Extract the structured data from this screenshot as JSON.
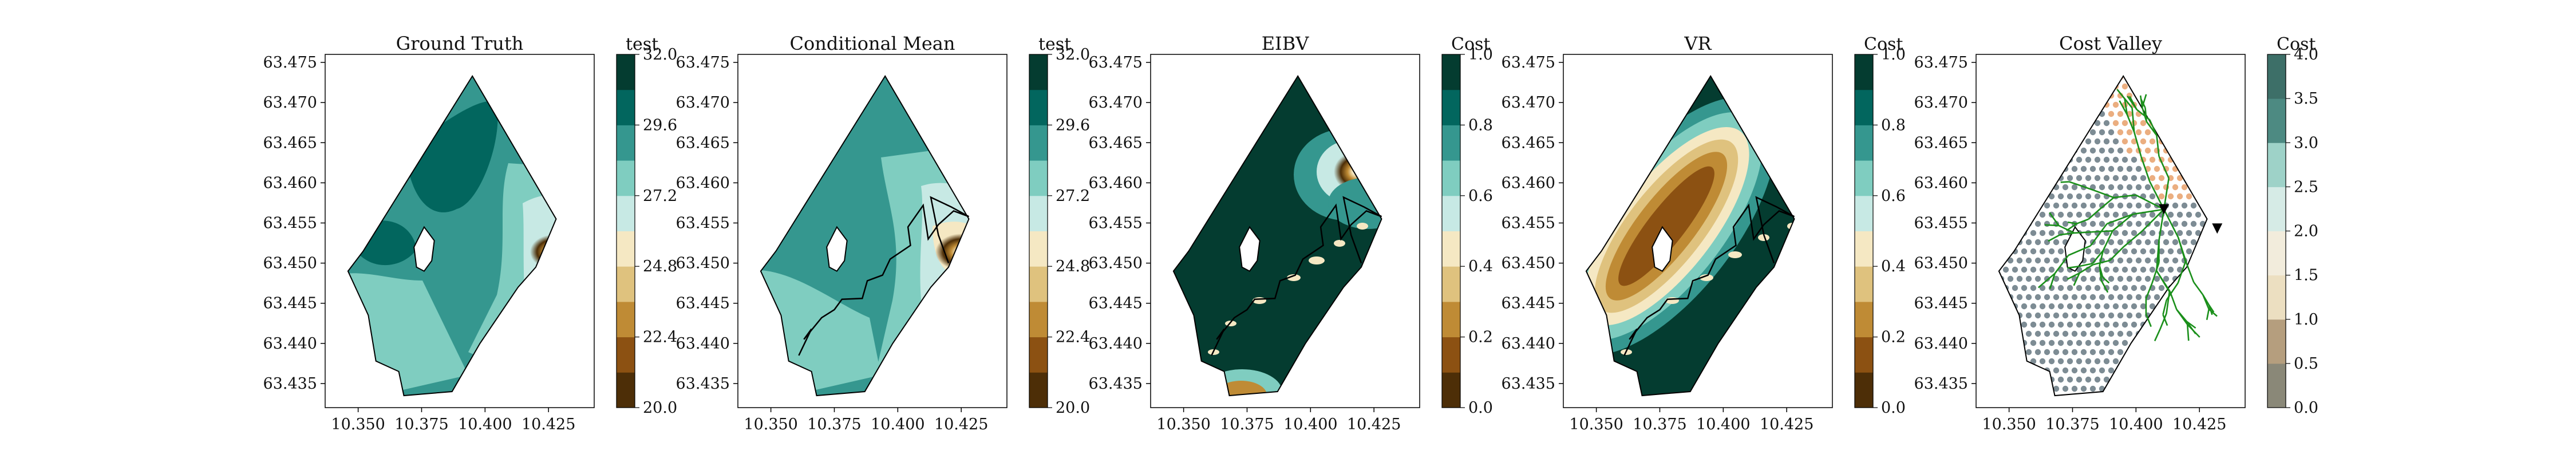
{
  "chart_data": [
    {
      "type": "contour",
      "title": "Ground Truth",
      "colorbar": {
        "label": "test",
        "ticks": [
          "20.0",
          "22.4",
          "24.8",
          "27.2",
          "29.6",
          "32.0"
        ],
        "range": [
          20.0,
          32.0
        ]
      },
      "xticks": [
        "10.350",
        "10.375",
        "10.400",
        "10.425"
      ],
      "yticks": [
        "63.435",
        "63.440",
        "63.445",
        "63.450",
        "63.455",
        "63.460",
        "63.465",
        "63.470",
        "63.475"
      ],
      "xlim": [
        10.337,
        10.443
      ],
      "ylim": [
        63.432,
        63.476
      ],
      "overlay": "none"
    },
    {
      "type": "contour",
      "title": "Conditional Mean",
      "colorbar": {
        "label": "test",
        "ticks": [
          "20.0",
          "22.4",
          "24.8",
          "27.2",
          "29.6",
          "32.0"
        ],
        "range": [
          20.0,
          32.0
        ]
      },
      "xticks": [
        "10.350",
        "10.375",
        "10.400",
        "10.425"
      ],
      "yticks": [
        "63.435",
        "63.440",
        "63.445",
        "63.450",
        "63.455",
        "63.460",
        "63.465",
        "63.470",
        "63.475"
      ],
      "xlim": [
        10.337,
        10.443
      ],
      "ylim": [
        63.432,
        63.476
      ],
      "overlay": "path",
      "path": [
        [
          10.361,
          63.4385
        ],
        [
          10.366,
          63.4418
        ],
        [
          10.363,
          63.4405
        ],
        [
          10.37,
          63.4432
        ],
        [
          10.375,
          63.4442
        ],
        [
          10.378,
          63.4455
        ],
        [
          10.386,
          63.4456
        ],
        [
          10.388,
          63.4478
        ],
        [
          10.394,
          63.4485
        ],
        [
          10.397,
          63.4505
        ],
        [
          10.405,
          63.4522
        ],
        [
          10.404,
          63.4545
        ],
        [
          10.41,
          63.4572
        ],
        [
          10.412,
          63.453
        ],
        [
          10.416,
          63.4548
        ],
        [
          10.422,
          63.4565
        ],
        [
          10.428,
          63.4558
        ],
        [
          10.421,
          63.457
        ],
        [
          10.413,
          63.4582
        ],
        [
          10.416,
          63.4535
        ],
        [
          10.42,
          63.45
        ]
      ]
    },
    {
      "type": "contour",
      "title": "EIBV",
      "colorbar": {
        "label": "Cost",
        "ticks": [
          "0.0",
          "0.2",
          "0.4",
          "0.6",
          "0.8",
          "1.0"
        ],
        "range": [
          0.0,
          1.0
        ]
      },
      "xticks": [
        "10.350",
        "10.375",
        "10.400",
        "10.425"
      ],
      "yticks": [
        "63.435",
        "63.440",
        "63.445",
        "63.450",
        "63.455",
        "63.460",
        "63.465",
        "63.470",
        "63.475"
      ],
      "xlim": [
        10.337,
        10.443
      ],
      "ylim": [
        63.432,
        63.476
      ],
      "overlay": "path"
    },
    {
      "type": "contour",
      "title": "VR",
      "colorbar": {
        "label": "Cost",
        "ticks": [
          "0.0",
          "0.2",
          "0.4",
          "0.6",
          "0.8",
          "1.0"
        ],
        "range": [
          0.0,
          1.0
        ]
      },
      "xticks": [
        "10.350",
        "10.375",
        "10.400",
        "10.425"
      ],
      "yticks": [
        "63.435",
        "63.440",
        "63.445",
        "63.450",
        "63.455",
        "63.460",
        "63.465",
        "63.470",
        "63.475"
      ],
      "xlim": [
        10.337,
        10.443
      ],
      "ylim": [
        63.432,
        63.476
      ],
      "overlay": "path"
    },
    {
      "type": "scatter",
      "title": "Cost Valley",
      "colorbar": {
        "label": "Cost",
        "ticks": [
          "0.0",
          "0.5",
          "1.0",
          "1.5",
          "2.0",
          "2.5",
          "3.0",
          "3.5",
          "4.0"
        ],
        "range": [
          0.0,
          4.0
        ]
      },
      "xticks": [
        "10.350",
        "10.375",
        "10.400",
        "10.425"
      ],
      "yticks": [
        "63.435",
        "63.440",
        "63.445",
        "63.450",
        "63.455",
        "63.460",
        "63.465",
        "63.470",
        "63.475"
      ],
      "xlim": [
        10.337,
        10.443
      ],
      "ylim": [
        63.432,
        63.476
      ],
      "overlay": "tree",
      "markers": [
        [
          10.411,
          63.4567
        ],
        [
          10.432,
          63.4543
        ]
      ]
    }
  ],
  "colors": {
    "brbg": [
      "#4d2e07",
      "#8c5112",
      "#bf8b35",
      "#dfc27e",
      "#f5e8c3",
      "#c7e9e4",
      "#7fcdc0",
      "#35978f",
      "#02665e",
      "#043c30"
    ],
    "tree": "#1a8f1a",
    "dot_low": "#6f7f88",
    "dot_high": "#e8a06a"
  }
}
